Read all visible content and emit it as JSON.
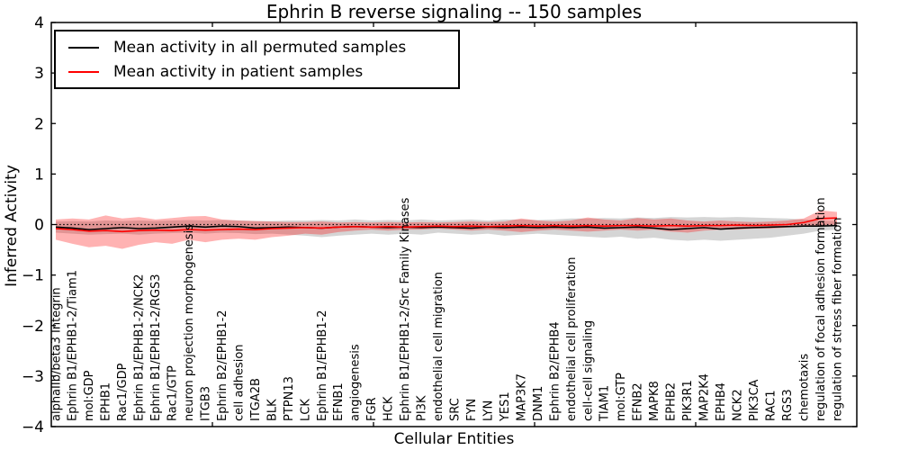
{
  "title": "Ephrin B reverse signaling -- 150 samples",
  "axes": {
    "ylabel": "Inferred Activity",
    "xlabel": "Cellular Entities",
    "y_tick_labels": [
      "4",
      "3",
      "2",
      "1",
      "0",
      "−1",
      "−2",
      "−3",
      "−4"
    ],
    "y_tick_values": [
      4,
      3,
      2,
      1,
      0,
      -1,
      -2,
      -3,
      -4
    ]
  },
  "legend": {
    "entries": [
      {
        "label": "Mean activity in all permuted samples",
        "color": "#000000"
      },
      {
        "label": "Mean activity in patient samples",
        "color": "#ff0000"
      }
    ]
  },
  "colors": {
    "permuted_line": "#000000",
    "patient_line": "#ff0000",
    "permuted_band": "#888888",
    "patient_band": "#ff0000",
    "axis": "#000000"
  },
  "chart_data": {
    "type": "line",
    "title": "Ephrin B reverse signaling -- 150 samples",
    "xlabel": "Cellular Entities",
    "ylabel": "Inferred Activity",
    "ylim": [
      -4,
      4
    ],
    "grid": false,
    "legend_position": "upper left",
    "reference_line": {
      "y": 0,
      "style": "dotted",
      "color": "#000000"
    },
    "categories": [
      "alphaIIb/beta3 Integrin",
      "Ephrin B1/EPHB1-2/Tiam1",
      "mol:GDP",
      "EPHB1",
      "Rac1/GDP",
      "Ephrin B1/EPHB1-2/NCK2",
      "Ephrin B1/EPHB1-2/RGS3",
      "Rac1/GTP",
      "neuron projection morphogenesis",
      "ITGB3",
      "Ephrin B2/EPHB1-2",
      "cell adhesion",
      "ITGA2B",
      "BLK",
      "PTPN13",
      "LCK",
      "Ephrin B1/EPHB1-2",
      "EFNB1",
      "angiogenesis",
      "FGR",
      "HCK",
      "Ephrin B1/EPHB1-2/Src Family Kinases",
      "PI3K",
      "endothelial cell migration",
      "SRC",
      "FYN",
      "LYN",
      "YES1",
      "MAP3K7",
      "DNM1",
      "Ephrin B2/EPHB4",
      "endothelial cell proliferation",
      "cell-cell signaling",
      "TIAM1",
      "mol:GTP",
      "EFNB2",
      "MAPK8",
      "EPHB2",
      "PIK3R1",
      "MAP2K4",
      "EPHB4",
      "NCK2",
      "PIK3CA",
      "RAC1",
      "RGS3",
      "chemotaxis",
      "regulation of focal adhesion formation",
      "regulation of stress fiber formation"
    ],
    "series": [
      {
        "name": "Mean activity in all permuted samples",
        "color": "#000000",
        "values": [
          -0.05,
          -0.07,
          -0.1,
          -0.08,
          -0.06,
          -0.08,
          -0.07,
          -0.05,
          -0.03,
          -0.05,
          -0.03,
          -0.04,
          -0.07,
          -0.06,
          -0.05,
          -0.06,
          -0.07,
          -0.05,
          -0.04,
          -0.05,
          -0.06,
          -0.05,
          -0.06,
          -0.05,
          -0.06,
          -0.07,
          -0.05,
          -0.06,
          -0.05,
          -0.06,
          -0.05,
          -0.06,
          -0.05,
          -0.07,
          -0.06,
          -0.05,
          -0.07,
          -0.1,
          -0.08,
          -0.06,
          -0.09,
          -0.07,
          -0.06,
          -0.05,
          -0.04,
          -0.03,
          -0.03,
          -0.02
        ]
      },
      {
        "name": "Mean activity in patient samples",
        "color": "#ff0000",
        "values": [
          -0.08,
          -0.1,
          -0.13,
          -0.12,
          -0.14,
          -0.12,
          -0.11,
          -0.12,
          -0.1,
          -0.11,
          -0.1,
          -0.09,
          -0.1,
          -0.08,
          -0.07,
          -0.06,
          -0.07,
          -0.05,
          -0.04,
          -0.05,
          -0.04,
          -0.05,
          -0.04,
          -0.03,
          -0.04,
          -0.03,
          -0.04,
          -0.03,
          -0.02,
          -0.03,
          -0.02,
          -0.03,
          -0.02,
          -0.03,
          -0.02,
          -0.02,
          -0.03,
          -0.02,
          -0.03,
          -0.02,
          -0.02,
          -0.01,
          -0.02,
          -0.01,
          0.0,
          0.04,
          0.12,
          0.13
        ]
      }
    ],
    "bands": [
      {
        "name": "permuted samples range",
        "color": "#888888",
        "opacity": 0.35,
        "upper": [
          0.06,
          0.07,
          0.06,
          0.08,
          0.07,
          0.08,
          0.07,
          0.08,
          0.09,
          0.08,
          0.09,
          0.08,
          0.07,
          0.07,
          0.08,
          0.08,
          0.09,
          0.08,
          0.1,
          0.08,
          0.09,
          0.08,
          0.1,
          0.08,
          0.09,
          0.1,
          0.08,
          0.1,
          0.1,
          0.09,
          0.1,
          0.12,
          0.12,
          0.13,
          0.12,
          0.14,
          0.13,
          0.15,
          0.14,
          0.15,
          0.14,
          0.15,
          0.14,
          0.13,
          0.12,
          0.1,
          0.08,
          0.07
        ],
        "lower": [
          -0.16,
          -0.18,
          -0.2,
          -0.19,
          -0.18,
          -0.2,
          -0.18,
          -0.17,
          -0.16,
          -0.18,
          -0.16,
          -0.17,
          -0.19,
          -0.18,
          -0.2,
          -0.22,
          -0.25,
          -0.22,
          -0.2,
          -0.18,
          -0.2,
          -0.18,
          -0.2,
          -0.16,
          -0.18,
          -0.2,
          -0.18,
          -0.22,
          -0.2,
          -0.18,
          -0.2,
          -0.22,
          -0.24,
          -0.26,
          -0.24,
          -0.28,
          -0.26,
          -0.3,
          -0.32,
          -0.3,
          -0.32,
          -0.3,
          -0.28,
          -0.26,
          -0.22,
          -0.18,
          -0.12,
          -0.1
        ]
      },
      {
        "name": "patient samples range",
        "color": "#ff0000",
        "opacity": 0.3,
        "upper": [
          0.1,
          0.12,
          0.1,
          0.18,
          0.12,
          0.15,
          0.1,
          0.13,
          0.16,
          0.17,
          0.1,
          0.08,
          0.07,
          0.06,
          0.05,
          0.05,
          0.06,
          0.04,
          0.05,
          0.04,
          0.05,
          0.04,
          0.05,
          0.04,
          0.05,
          0.06,
          0.05,
          0.06,
          0.12,
          0.08,
          0.06,
          0.08,
          0.14,
          0.1,
          0.08,
          0.13,
          0.1,
          0.12,
          0.08,
          0.06,
          0.08,
          0.06,
          0.05,
          0.06,
          0.08,
          0.12,
          0.28,
          0.25
        ],
        "lower": [
          -0.3,
          -0.38,
          -0.45,
          -0.42,
          -0.48,
          -0.4,
          -0.35,
          -0.38,
          -0.3,
          -0.35,
          -0.3,
          -0.28,
          -0.3,
          -0.25,
          -0.22,
          -0.18,
          -0.2,
          -0.15,
          -0.12,
          -0.1,
          -0.12,
          -0.1,
          -0.1,
          -0.08,
          -0.1,
          -0.12,
          -0.1,
          -0.12,
          -0.15,
          -0.12,
          -0.1,
          -0.12,
          -0.14,
          -0.12,
          -0.1,
          -0.12,
          -0.1,
          -0.14,
          -0.16,
          -0.12,
          -0.1,
          -0.1,
          -0.08,
          -0.08,
          -0.06,
          -0.04,
          -0.02,
          0.0
        ]
      }
    ]
  }
}
